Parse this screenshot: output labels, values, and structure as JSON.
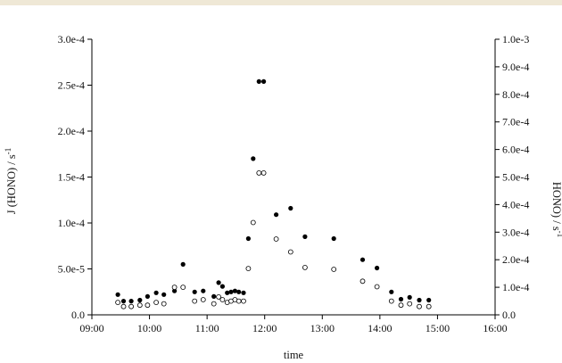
{
  "chart_data": {
    "type": "scatter",
    "xlabel": "time",
    "ylabel_left": "J (HONO) / s",
    "ylabel_left_sup": "-1",
    "ylabel_right": "HONO) / s",
    "ylabel_right_sup": "-1",
    "x_ticks": [
      "09:00",
      "10:00",
      "11:00",
      "12:00",
      "13:00",
      "14:00",
      "15:00",
      "16:00"
    ],
    "y_left_ticks": [
      "0.0",
      "5.0e-5",
      "1.0e-4",
      "1.5e-4",
      "2.0e-4",
      "2.5e-4",
      "3.0e-4"
    ],
    "y_right_ticks": [
      "0.0",
      "1.0e-4",
      "2.0e-4",
      "3.0e-4",
      "4.0e-4",
      "5.0e-4",
      "6.0e-4",
      "7.0e-4",
      "8.0e-4",
      "9.0e-4",
      "1.0e-3"
    ],
    "xlim": [
      "09:00",
      "16:00"
    ],
    "ylim_left": [
      0,
      0.0003
    ],
    "ylim_right": [
      0,
      0.001
    ],
    "series": [
      {
        "axis": "left",
        "marker": "filled-circle",
        "color": "#000000",
        "points": [
          [
            "09:27",
            2.2e-05
          ],
          [
            "09:33",
            1.5e-05
          ],
          [
            "09:41",
            1.5e-05
          ],
          [
            "09:50",
            1.6e-05
          ],
          [
            "09:58",
            2e-05
          ],
          [
            "10:07",
            2.4e-05
          ],
          [
            "10:15",
            2.2e-05
          ],
          [
            "10:26",
            2.6e-05
          ],
          [
            "10:35",
            5.5e-05
          ],
          [
            "10:47",
            2.5e-05
          ],
          [
            "10:56",
            2.6e-05
          ],
          [
            "11:07",
            2e-05
          ],
          [
            "11:12",
            3.5e-05
          ],
          [
            "11:16",
            3.1e-05
          ],
          [
            "11:21",
            2.4e-05
          ],
          [
            "11:25",
            2.5e-05
          ],
          [
            "11:29",
            2.6e-05
          ],
          [
            "11:33",
            2.5e-05
          ],
          [
            "11:38",
            2.4e-05
          ],
          [
            "11:43",
            8.3e-05
          ],
          [
            "11:48",
            0.00017
          ],
          [
            "11:54",
            0.000254
          ],
          [
            "11:59",
            0.000254
          ],
          [
            "12:12",
            0.000109
          ],
          [
            "12:27",
            0.000116
          ],
          [
            "12:42",
            8.5e-05
          ],
          [
            "13:12",
            8.3e-05
          ],
          [
            "13:42",
            6e-05
          ],
          [
            "13:57",
            5.1e-05
          ],
          [
            "14:12",
            2.5e-05
          ],
          [
            "14:22",
            1.7e-05
          ],
          [
            "14:31",
            1.9e-05
          ],
          [
            "14:41",
            1.6e-05
          ],
          [
            "14:51",
            1.6e-05
          ]
        ]
      },
      {
        "axis": "right",
        "marker": "open-circle",
        "color": "#000000",
        "points": [
          [
            "09:27",
            4.5e-05
          ],
          [
            "09:33",
            3e-05
          ],
          [
            "09:41",
            3e-05
          ],
          [
            "09:50",
            3.5e-05
          ],
          [
            "09:58",
            3.5e-05
          ],
          [
            "10:07",
            4.5e-05
          ],
          [
            "10:15",
            4e-05
          ],
          [
            "10:26",
            0.0001
          ],
          [
            "10:35",
            0.0001
          ],
          [
            "10:47",
            5e-05
          ],
          [
            "10:56",
            5.5e-05
          ],
          [
            "11:07",
            4e-05
          ],
          [
            "11:12",
            6.5e-05
          ],
          [
            "11:16",
            5.5e-05
          ],
          [
            "11:21",
            4.5e-05
          ],
          [
            "11:25",
            5e-05
          ],
          [
            "11:29",
            5.5e-05
          ],
          [
            "11:33",
            5e-05
          ],
          [
            "11:38",
            5e-05
          ],
          [
            "11:43",
            0.000168
          ],
          [
            "11:48",
            0.000335
          ],
          [
            "11:54",
            0.000515
          ],
          [
            "11:59",
            0.000515
          ],
          [
            "12:12",
            0.000275
          ],
          [
            "12:27",
            0.000228
          ],
          [
            "12:42",
            0.000172
          ],
          [
            "13:12",
            0.000165
          ],
          [
            "13:42",
            0.000122
          ],
          [
            "13:57",
            0.000102
          ],
          [
            "14:12",
            5e-05
          ],
          [
            "14:22",
            3.5e-05
          ],
          [
            "14:31",
            4e-05
          ],
          [
            "14:41",
            3e-05
          ],
          [
            "14:51",
            3e-05
          ]
        ]
      }
    ]
  }
}
